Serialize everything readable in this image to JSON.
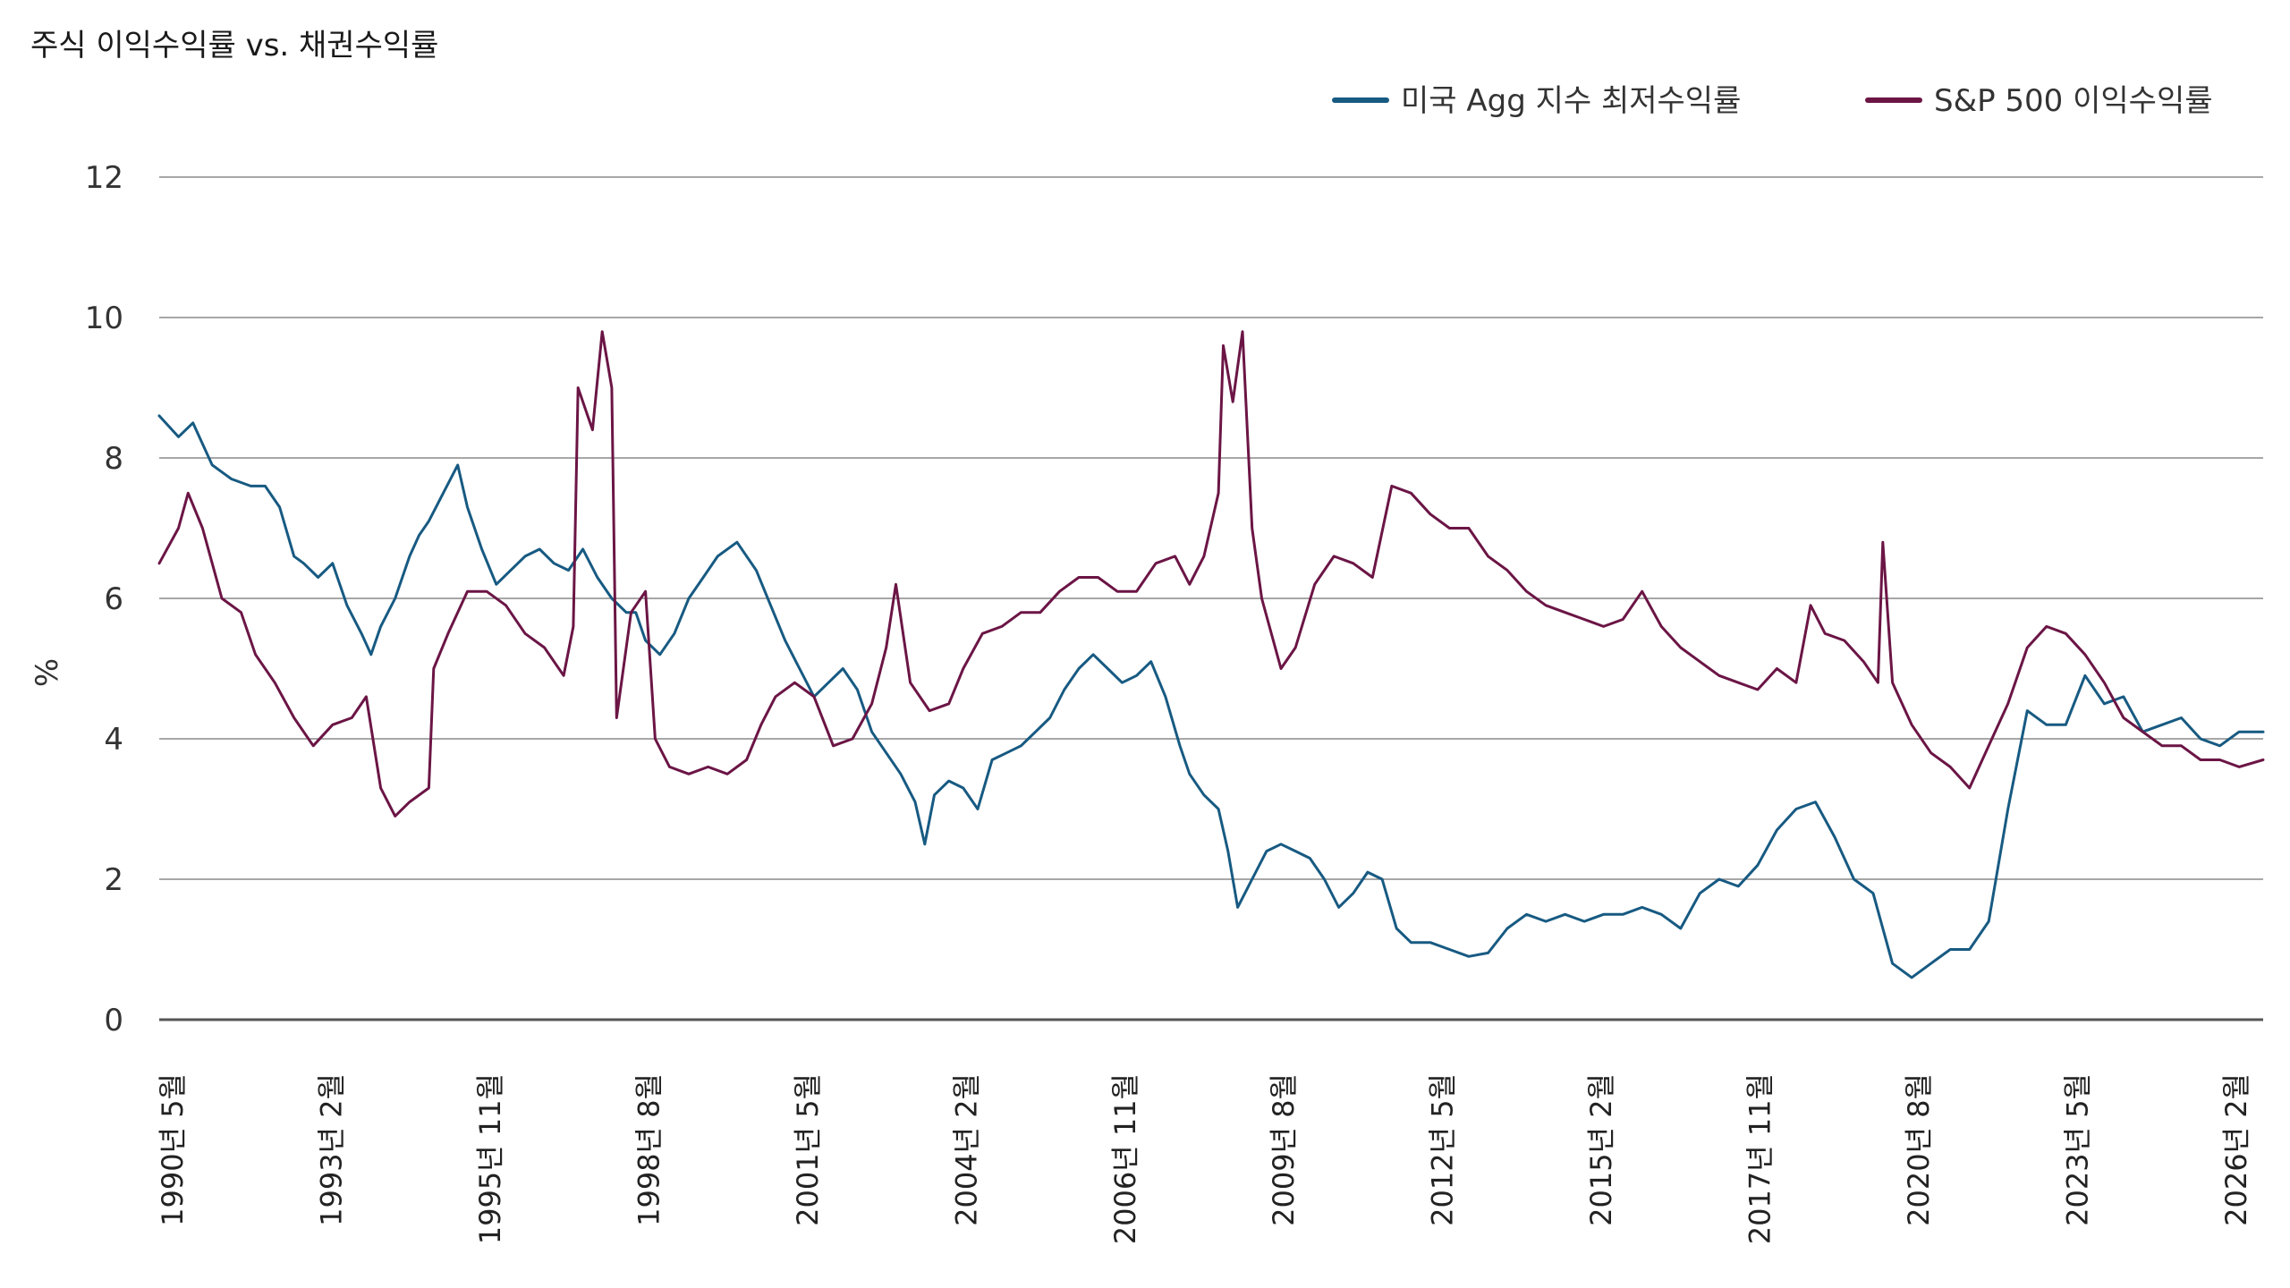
{
  "chart_data": {
    "type": "line",
    "title": "주식 이익수익률 vs. 채권수익률",
    "ylabel": "%",
    "xlabel": "",
    "ylim": [
      0,
      12
    ],
    "yticks": [
      0,
      2,
      4,
      6,
      8,
      10,
      12
    ],
    "x_range": [
      "1990-05",
      "2026-10"
    ],
    "xtick_labels": [
      "1990년 5월",
      "1993년 2월",
      "1995년 11월",
      "1998년 8월",
      "2001년 5월",
      "2004년 2월",
      "2006년 11월",
      "2009년 8월",
      "2012년 5월",
      "2015년 2월",
      "2017년 11월",
      "2020년 8월",
      "2023년 5월",
      "2026년 2월"
    ],
    "grid": "horizontal",
    "legend_position": "top-right",
    "series": [
      {
        "name": "미국 Agg 지수 최저수익률",
        "color": "#175a82",
        "points": [
          [
            "1990-05",
            8.6
          ],
          [
            "1990-09",
            8.3
          ],
          [
            "1990-12",
            8.5
          ],
          [
            "1991-04",
            7.9
          ],
          [
            "1991-08",
            7.7
          ],
          [
            "1991-12",
            7.6
          ],
          [
            "1992-03",
            7.6
          ],
          [
            "1992-06",
            7.3
          ],
          [
            "1992-09",
            6.6
          ],
          [
            "1992-11",
            6.5
          ],
          [
            "1993-02",
            6.3
          ],
          [
            "1993-05",
            6.5
          ],
          [
            "1993-08",
            5.9
          ],
          [
            "1993-11",
            5.5
          ],
          [
            "1994-01",
            5.2
          ],
          [
            "1994-03",
            5.6
          ],
          [
            "1994-06",
            6.0
          ],
          [
            "1994-09",
            6.6
          ],
          [
            "1994-11",
            6.9
          ],
          [
            "1995-01",
            7.1
          ],
          [
            "1995-04",
            7.5
          ],
          [
            "1995-07",
            7.9
          ],
          [
            "1995-09",
            7.3
          ],
          [
            "1995-12",
            6.7
          ],
          [
            "1996-03",
            6.2
          ],
          [
            "1996-06",
            6.4
          ],
          [
            "1996-09",
            6.6
          ],
          [
            "1996-12",
            6.7
          ],
          [
            "1997-03",
            6.5
          ],
          [
            "1997-06",
            6.4
          ],
          [
            "1997-09",
            6.7
          ],
          [
            "1997-12",
            6.3
          ],
          [
            "1998-03",
            6.0
          ],
          [
            "1998-06",
            5.8
          ],
          [
            "1998-08",
            5.8
          ],
          [
            "1998-10",
            5.4
          ],
          [
            "1999-01",
            5.2
          ],
          [
            "1999-04",
            5.5
          ],
          [
            "1999-07",
            6.0
          ],
          [
            "1999-10",
            6.3
          ],
          [
            "2000-01",
            6.6
          ],
          [
            "2000-05",
            6.8
          ],
          [
            "2000-09",
            6.4
          ],
          [
            "2000-12",
            5.9
          ],
          [
            "2001-03",
            5.4
          ],
          [
            "2001-06",
            5.0
          ],
          [
            "2001-09",
            4.6
          ],
          [
            "2001-12",
            4.8
          ],
          [
            "2002-03",
            5.0
          ],
          [
            "2002-06",
            4.7
          ],
          [
            "2002-09",
            4.1
          ],
          [
            "2002-12",
            3.8
          ],
          [
            "2003-03",
            3.5
          ],
          [
            "2003-06",
            3.1
          ],
          [
            "2003-08",
            2.5
          ],
          [
            "2003-10",
            3.2
          ],
          [
            "2004-01",
            3.4
          ],
          [
            "2004-04",
            3.3
          ],
          [
            "2004-07",
            3.0
          ],
          [
            "2004-10",
            3.7
          ],
          [
            "2005-01",
            3.8
          ],
          [
            "2005-04",
            3.9
          ],
          [
            "2005-07",
            4.1
          ],
          [
            "2005-10",
            4.3
          ],
          [
            "2006-01",
            4.7
          ],
          [
            "2006-04",
            5.0
          ],
          [
            "2006-07",
            5.2
          ],
          [
            "2006-10",
            5.0
          ],
          [
            "2007-01",
            4.8
          ],
          [
            "2007-04",
            4.9
          ],
          [
            "2007-07",
            5.1
          ],
          [
            "2007-10",
            4.6
          ],
          [
            "2008-01",
            3.9
          ],
          [
            "2008-03",
            3.5
          ],
          [
            "2008-06",
            3.2
          ],
          [
            "2008-09",
            3.0
          ],
          [
            "2008-11",
            2.4
          ],
          [
            "2009-01",
            1.6
          ],
          [
            "2009-04",
            2.0
          ],
          [
            "2009-07",
            2.4
          ],
          [
            "2009-10",
            2.5
          ],
          [
            "2010-01",
            2.4
          ],
          [
            "2010-04",
            2.3
          ],
          [
            "2010-07",
            2.0
          ],
          [
            "2010-10",
            1.6
          ],
          [
            "2011-01",
            1.8
          ],
          [
            "2011-04",
            2.1
          ],
          [
            "2011-07",
            2.0
          ],
          [
            "2011-10",
            1.3
          ],
          [
            "2012-01",
            1.1
          ],
          [
            "2012-05",
            1.1
          ],
          [
            "2012-09",
            1.0
          ],
          [
            "2013-01",
            0.9
          ],
          [
            "2013-05",
            0.95
          ],
          [
            "2013-09",
            1.3
          ],
          [
            "2014-01",
            1.5
          ],
          [
            "2014-05",
            1.4
          ],
          [
            "2014-09",
            1.5
          ],
          [
            "2015-01",
            1.4
          ],
          [
            "2015-05",
            1.5
          ],
          [
            "2015-09",
            1.5
          ],
          [
            "2016-01",
            1.6
          ],
          [
            "2016-05",
            1.5
          ],
          [
            "2016-09",
            1.3
          ],
          [
            "2017-01",
            1.8
          ],
          [
            "2017-05",
            2.0
          ],
          [
            "2017-09",
            1.9
          ],
          [
            "2018-01",
            2.2
          ],
          [
            "2018-05",
            2.7
          ],
          [
            "2018-09",
            3.0
          ],
          [
            "2019-01",
            3.1
          ],
          [
            "2019-05",
            2.6
          ],
          [
            "2019-09",
            2.0
          ],
          [
            "2020-01",
            1.8
          ],
          [
            "2020-05",
            0.8
          ],
          [
            "2020-09",
            0.6
          ],
          [
            "2021-01",
            0.8
          ],
          [
            "2021-05",
            1.0
          ],
          [
            "2021-09",
            1.0
          ],
          [
            "2022-01",
            1.4
          ],
          [
            "2022-05",
            3.0
          ],
          [
            "2022-09",
            4.4
          ],
          [
            "2023-01",
            4.2
          ],
          [
            "2023-05",
            4.2
          ],
          [
            "2023-09",
            4.9
          ],
          [
            "2024-01",
            4.5
          ],
          [
            "2024-05",
            4.6
          ],
          [
            "2024-09",
            4.1
          ],
          [
            "2025-01",
            4.2
          ],
          [
            "2025-05",
            4.3
          ],
          [
            "2025-09",
            4.0
          ],
          [
            "2026-01",
            3.9
          ],
          [
            "2026-05",
            4.1
          ],
          [
            "2026-10",
            4.1
          ]
        ]
      },
      {
        "name": "S&P 500 이익수익률",
        "color": "#6b1545",
        "points": [
          [
            "1990-05",
            6.5
          ],
          [
            "1990-09",
            7.0
          ],
          [
            "1990-11",
            7.5
          ],
          [
            "1991-02",
            7.0
          ],
          [
            "1991-06",
            6.0
          ],
          [
            "1991-10",
            5.8
          ],
          [
            "1992-01",
            5.2
          ],
          [
            "1992-05",
            4.8
          ],
          [
            "1992-09",
            4.3
          ],
          [
            "1993-01",
            3.9
          ],
          [
            "1993-05",
            4.2
          ],
          [
            "1993-09",
            4.3
          ],
          [
            "1993-12",
            4.6
          ],
          [
            "1994-03",
            3.3
          ],
          [
            "1994-06",
            2.9
          ],
          [
            "1994-09",
            3.1
          ],
          [
            "1995-01",
            3.3
          ],
          [
            "1995-02",
            5.0
          ],
          [
            "1995-05",
            5.5
          ],
          [
            "1995-09",
            6.1
          ],
          [
            "1996-01",
            6.1
          ],
          [
            "1996-05",
            5.9
          ],
          [
            "1996-09",
            5.5
          ],
          [
            "1997-01",
            5.3
          ],
          [
            "1997-05",
            4.9
          ],
          [
            "1997-07",
            5.6
          ],
          [
            "1997-08",
            9.0
          ],
          [
            "1997-11",
            8.4
          ],
          [
            "1998-01",
            9.8
          ],
          [
            "1998-03",
            9.0
          ],
          [
            "1998-04",
            4.3
          ],
          [
            "1998-07",
            5.8
          ],
          [
            "1998-10",
            6.1
          ],
          [
            "1998-12",
            4.0
          ],
          [
            "1999-03",
            3.6
          ],
          [
            "1999-07",
            3.5
          ],
          [
            "1999-11",
            3.6
          ],
          [
            "2000-03",
            3.5
          ],
          [
            "2000-07",
            3.7
          ],
          [
            "2000-10",
            4.2
          ],
          [
            "2001-01",
            4.6
          ],
          [
            "2001-05",
            4.8
          ],
          [
            "2001-09",
            4.6
          ],
          [
            "2002-01",
            3.9
          ],
          [
            "2002-05",
            4.0
          ],
          [
            "2002-09",
            4.5
          ],
          [
            "2002-12",
            5.3
          ],
          [
            "2003-02",
            6.2
          ],
          [
            "2003-05",
            4.8
          ],
          [
            "2003-09",
            4.4
          ],
          [
            "2004-01",
            4.5
          ],
          [
            "2004-04",
            5.0
          ],
          [
            "2004-08",
            5.5
          ],
          [
            "2004-12",
            5.6
          ],
          [
            "2005-04",
            5.8
          ],
          [
            "2005-08",
            5.8
          ],
          [
            "2005-12",
            6.1
          ],
          [
            "2006-04",
            6.3
          ],
          [
            "2006-08",
            6.3
          ],
          [
            "2006-12",
            6.1
          ],
          [
            "2007-04",
            6.1
          ],
          [
            "2007-08",
            6.5
          ],
          [
            "2007-12",
            6.6
          ],
          [
            "2008-03",
            6.2
          ],
          [
            "2008-06",
            6.6
          ],
          [
            "2008-09",
            7.5
          ],
          [
            "2008-10",
            9.6
          ],
          [
            "2008-12",
            8.8
          ],
          [
            "2009-02",
            9.8
          ],
          [
            "2009-04",
            7.0
          ],
          [
            "2009-06",
            6.0
          ],
          [
            "2009-10",
            5.0
          ],
          [
            "2010-01",
            5.3
          ],
          [
            "2010-05",
            6.2
          ],
          [
            "2010-09",
            6.6
          ],
          [
            "2011-01",
            6.5
          ],
          [
            "2011-05",
            6.3
          ],
          [
            "2011-09",
            7.6
          ],
          [
            "2012-01",
            7.5
          ],
          [
            "2012-05",
            7.2
          ],
          [
            "2012-09",
            7.0
          ],
          [
            "2013-01",
            7.0
          ],
          [
            "2013-05",
            6.6
          ],
          [
            "2013-09",
            6.4
          ],
          [
            "2014-01",
            6.1
          ],
          [
            "2014-05",
            5.9
          ],
          [
            "2014-09",
            5.8
          ],
          [
            "2015-01",
            5.7
          ],
          [
            "2015-05",
            5.6
          ],
          [
            "2015-09",
            5.7
          ],
          [
            "2016-01",
            6.1
          ],
          [
            "2016-05",
            5.6
          ],
          [
            "2016-09",
            5.3
          ],
          [
            "2017-01",
            5.1
          ],
          [
            "2017-05",
            4.9
          ],
          [
            "2017-09",
            4.8
          ],
          [
            "2018-01",
            4.7
          ],
          [
            "2018-05",
            5.0
          ],
          [
            "2018-09",
            4.8
          ],
          [
            "2018-12",
            5.9
          ],
          [
            "2019-03",
            5.5
          ],
          [
            "2019-07",
            5.4
          ],
          [
            "2019-11",
            5.1
          ],
          [
            "2020-02",
            4.8
          ],
          [
            "2020-03",
            6.8
          ],
          [
            "2020-05",
            4.8
          ],
          [
            "2020-09",
            4.2
          ],
          [
            "2021-01",
            3.8
          ],
          [
            "2021-05",
            3.6
          ],
          [
            "2021-09",
            3.3
          ],
          [
            "2022-01",
            3.9
          ],
          [
            "2022-05",
            4.5
          ],
          [
            "2022-09",
            5.3
          ],
          [
            "2023-01",
            5.6
          ],
          [
            "2023-05",
            5.5
          ],
          [
            "2023-09",
            5.2
          ],
          [
            "2024-01",
            4.8
          ],
          [
            "2024-05",
            4.3
          ],
          [
            "2024-09",
            4.1
          ],
          [
            "2025-01",
            3.9
          ],
          [
            "2025-05",
            3.9
          ],
          [
            "2025-09",
            3.7
          ],
          [
            "2026-01",
            3.7
          ],
          [
            "2026-05",
            3.6
          ],
          [
            "2026-10",
            3.7
          ]
        ]
      }
    ]
  }
}
